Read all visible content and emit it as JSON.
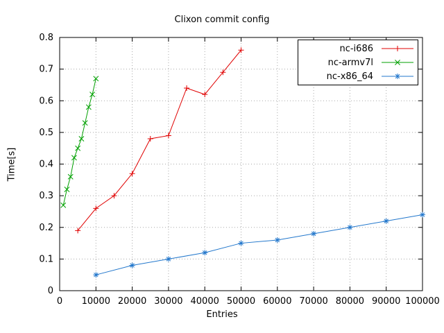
{
  "chart_data": {
    "type": "line",
    "title": "Clixon commit config",
    "xlabel": "Entries",
    "ylabel": "Time[s]",
    "xlim": [
      0,
      100000
    ],
    "ylim": [
      0,
      0.8
    ],
    "grid": true,
    "legend_position": "top-right-inside",
    "xticks": [
      0,
      10000,
      20000,
      30000,
      40000,
      50000,
      60000,
      70000,
      80000,
      90000,
      100000
    ],
    "xtick_labels": [
      "0",
      "10000",
      "20000",
      "30000",
      "40000",
      "50000",
      "60000",
      "70000",
      "80000",
      "90000",
      "100000"
    ],
    "yticks": [
      0,
      0.1,
      0.2,
      0.3,
      0.4,
      0.5,
      0.6,
      0.7,
      0.8
    ],
    "ytick_labels": [
      "0",
      "0.1",
      "0.2",
      "0.3",
      "0.4",
      "0.5",
      "0.6",
      "0.7",
      "0.8"
    ],
    "series": [
      {
        "name": "nc-i686",
        "color": "#e00000",
        "marker": "plus",
        "points": [
          [
            5000,
            0.19
          ],
          [
            10000,
            0.26
          ],
          [
            15000,
            0.3
          ],
          [
            20000,
            0.37
          ],
          [
            25000,
            0.48
          ],
          [
            30000,
            0.49
          ],
          [
            35000,
            0.64
          ],
          [
            40000,
            0.62
          ],
          [
            45000,
            0.69
          ],
          [
            50000,
            0.76
          ]
        ]
      },
      {
        "name": "nc-armv7l",
        "color": "#00a000",
        "marker": "cross",
        "points": [
          [
            1000,
            0.27
          ],
          [
            2000,
            0.32
          ],
          [
            3000,
            0.36
          ],
          [
            4000,
            0.42
          ],
          [
            5000,
            0.45
          ],
          [
            6000,
            0.48
          ],
          [
            7000,
            0.53
          ],
          [
            8000,
            0.58
          ],
          [
            9000,
            0.62
          ],
          [
            10000,
            0.67
          ]
        ]
      },
      {
        "name": "nc-x86_64",
        "color": "#2277cc",
        "marker": "asterisk",
        "points": [
          [
            10000,
            0.05
          ],
          [
            20000,
            0.08
          ],
          [
            30000,
            0.1
          ],
          [
            40000,
            0.12
          ],
          [
            50000,
            0.15
          ],
          [
            60000,
            0.16
          ],
          [
            70000,
            0.18
          ],
          [
            80000,
            0.2
          ],
          [
            90000,
            0.22
          ],
          [
            100000,
            0.24
          ]
        ]
      }
    ]
  }
}
